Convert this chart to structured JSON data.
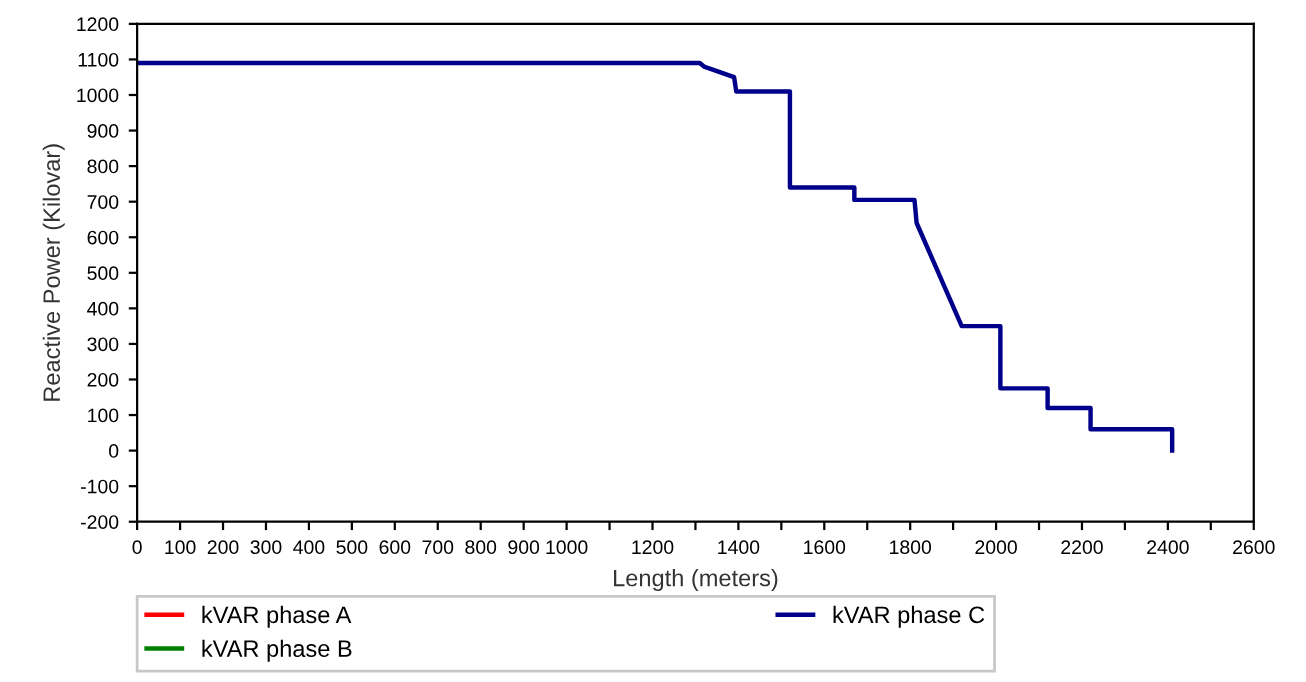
{
  "chart_data": {
    "type": "line",
    "xlabel": "Length (meters)",
    "ylabel": "Reactive Power (Kilovar)",
    "x": [
      0,
      1310,
      1320,
      1390,
      1395,
      1520,
      1520,
      1670,
      1670,
      1810,
      1815,
      1920,
      2010,
      2010,
      2120,
      2120,
      2220,
      2220,
      2410,
      2410
    ],
    "series": [
      {
        "name": "kVAR phase A",
        "color": "#ff0000",
        "values": [
          null,
          null,
          null,
          null,
          null,
          null,
          null,
          null,
          null,
          null,
          null,
          null,
          null,
          null,
          null,
          null,
          null,
          null,
          null,
          null
        ]
      },
      {
        "name": "kVAR phase B",
        "color": "#008000",
        "values": [
          null,
          null,
          null,
          null,
          null,
          null,
          null,
          null,
          null,
          null,
          null,
          null,
          null,
          null,
          null,
          null,
          null,
          null,
          null,
          null
        ]
      },
      {
        "name": "kVAR phase C",
        "color": "#00008b",
        "values": [
          1090,
          1090,
          1080,
          1050,
          1010,
          1010,
          740,
          740,
          705,
          705,
          640,
          350,
          350,
          175,
          175,
          120,
          120,
          60,
          60,
          0
        ]
      }
    ],
    "xlim": [
      0,
      2600
    ],
    "ylim": [
      -200,
      1200
    ],
    "xticks": [
      0,
      100,
      200,
      300,
      400,
      500,
      600,
      700,
      800,
      900,
      1000,
      {
        "value": 1100,
        "label": null
      },
      1200,
      {
        "value": 1300,
        "label": null
      },
      1400,
      {
        "value": 1500,
        "label": null
      },
      1600,
      {
        "value": 1700,
        "label": null
      },
      1800,
      {
        "value": 1900,
        "label": null
      },
      2000,
      {
        "value": 2100,
        "label": null
      },
      2200,
      {
        "value": 2300,
        "label": null
      },
      2400,
      {
        "value": 2500,
        "label": null
      },
      2600
    ],
    "yticks": [
      -200,
      -100,
      0,
      100,
      200,
      300,
      400,
      500,
      600,
      700,
      800,
      900,
      1000,
      1100,
      1200
    ],
    "grid": false,
    "legend": "bottom",
    "marker": "none",
    "line_style": "solid"
  }
}
